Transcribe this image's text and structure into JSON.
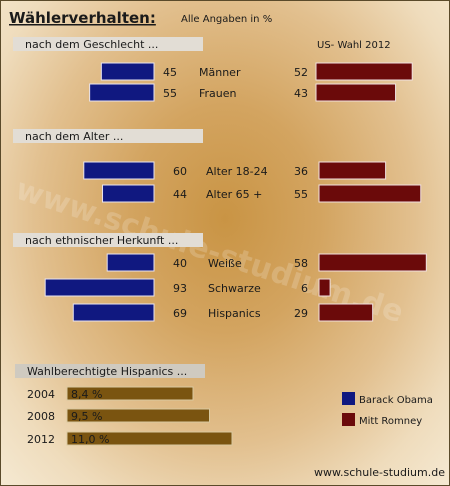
{
  "title": "Wählerverhalten:",
  "subtitle": "Alle Angaben in %",
  "us_label": "US- Wahl 2012",
  "watermark": "www.schule-studium.de",
  "colors": {
    "obama": "#101880",
    "romney": "#6b0a0a",
    "hispanic_bar": "#7a5410",
    "header_bg": "#e2ddd5"
  },
  "chart_data": [
    {
      "type": "bar",
      "title": "nach dem Geschlecht ...",
      "categories": [
        "Männer",
        "Frauen"
      ],
      "series": [
        {
          "name": "Barack Obama",
          "values": [
            45,
            55
          ]
        },
        {
          "name": "Mitt Romney",
          "values": [
            52,
            43
          ]
        }
      ]
    },
    {
      "type": "bar",
      "title": "nach dem Alter ...",
      "categories": [
        "Alter 18-24",
        "Alter 65 +"
      ],
      "series": [
        {
          "name": "Barack Obama",
          "values": [
            60,
            44
          ]
        },
        {
          "name": "Mitt Romney",
          "values": [
            36,
            55
          ]
        }
      ]
    },
    {
      "type": "bar",
      "title": "nach ethnischer Herkunft ...",
      "categories": [
        "Weiße",
        "Schwarze",
        "Hispanics"
      ],
      "series": [
        {
          "name": "Barack Obama",
          "values": [
            40,
            93,
            69
          ]
        },
        {
          "name": "Mitt Romney",
          "values": [
            58,
            6,
            29
          ]
        }
      ]
    },
    {
      "type": "bar",
      "title": "Wahlberechtigte Hispanics ...",
      "categories": [
        "2004",
        "2008",
        "2012"
      ],
      "values": [
        8.4,
        9.5,
        11.0
      ],
      "value_labels": [
        "8,4 %",
        "9,5 %",
        "11,0 %"
      ]
    }
  ],
  "legend": [
    {
      "label": "Barack Obama",
      "color": "#101880"
    },
    {
      "label": "Mitt Romney",
      "color": "#6b0a0a"
    }
  ]
}
